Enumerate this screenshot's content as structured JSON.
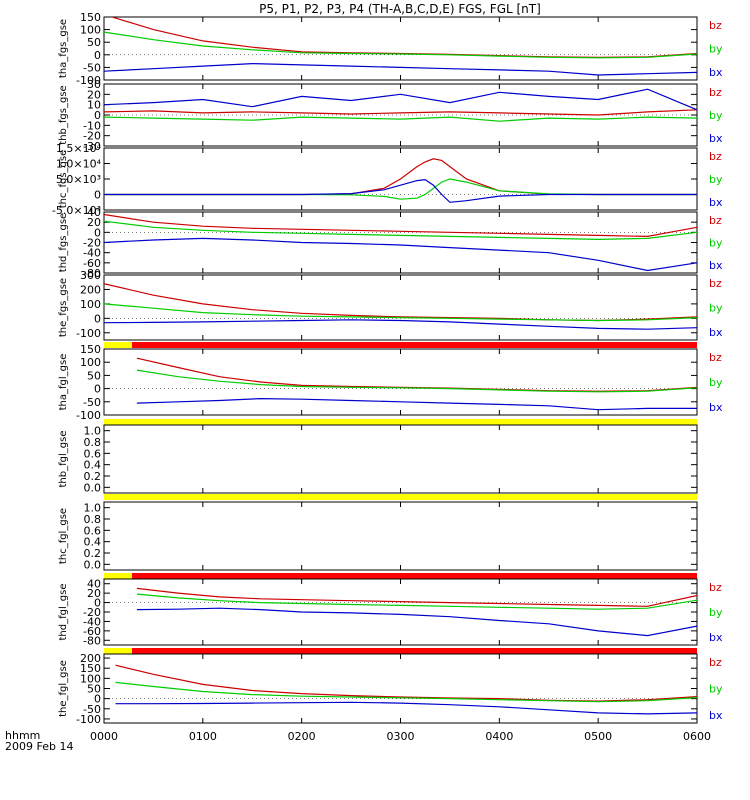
{
  "title": "P5, P1, P2, P3, P4 (TH-A,B,C,D,E) FGS, FGL [nT]",
  "x_axis": {
    "corner_labels": [
      "hhmm",
      "2009 Feb 14"
    ],
    "tick_labels": [
      "0000",
      "0100",
      "0200",
      "0300",
      "0400",
      "0500",
      "0600"
    ]
  },
  "colors": {
    "bz": "#cc0000",
    "by": "#00cc00",
    "bx": "#0000cc",
    "bar_red": "#ff0000",
    "bar_yellow": "#ffff00"
  },
  "chart_data": [
    {
      "type": "line",
      "ylabel": "tha_fgs_gse",
      "ylim": [
        -100,
        150
      ],
      "yticks": [
        -100,
        -50,
        0,
        50,
        100,
        150
      ],
      "ytick_labels": [
        "-100",
        "-50",
        "0",
        "50",
        "100",
        "150"
      ],
      "legend": [
        "bz",
        "by",
        "bx"
      ],
      "x": [
        0,
        30,
        60,
        90,
        120,
        150,
        180,
        210,
        240,
        270,
        300,
        330,
        360
      ],
      "series": [
        {
          "name": "bz",
          "values": [
            160,
            100,
            55,
            30,
            12,
            8,
            5,
            2,
            -3,
            -8,
            -10,
            -8,
            5
          ]
        },
        {
          "name": "by",
          "values": [
            90,
            60,
            35,
            20,
            8,
            5,
            3,
            0,
            -5,
            -10,
            -12,
            -10,
            3
          ]
        },
        {
          "name": "bx",
          "values": [
            -65,
            -55,
            -45,
            -35,
            -40,
            -45,
            -50,
            -55,
            -60,
            -65,
            -80,
            -75,
            -70
          ]
        }
      ],
      "bar": []
    },
    {
      "type": "line",
      "ylabel": "thb_fgs_gse",
      "ylim": [
        -30,
        30
      ],
      "yticks": [
        -30,
        -20,
        -10,
        0,
        10,
        20,
        30
      ],
      "ytick_labels": [
        "-30",
        "-20",
        "-10",
        "0",
        "10",
        "20",
        "30"
      ],
      "legend": [
        "bz",
        "by",
        "bx"
      ],
      "x": [
        0,
        30,
        60,
        90,
        120,
        150,
        180,
        210,
        240,
        270,
        300,
        330,
        360
      ],
      "series": [
        {
          "name": "bz",
          "values": [
            3,
            4,
            2,
            3,
            2,
            1,
            2,
            3,
            2,
            1,
            0,
            3,
            5
          ]
        },
        {
          "name": "by",
          "values": [
            -2,
            -3,
            -4,
            -5,
            -2,
            -3,
            -4,
            -2,
            -6,
            -3,
            -4,
            -2,
            -3
          ]
        },
        {
          "name": "bx",
          "values": [
            10,
            12,
            15,
            8,
            18,
            14,
            20,
            12,
            22,
            18,
            15,
            25,
            5
          ]
        }
      ],
      "bar": []
    },
    {
      "type": "line",
      "ylabel": "thc_fgs_gse",
      "ylim": [
        -5000,
        15000
      ],
      "yticks": [
        -5000,
        0,
        5000,
        10000,
        15000
      ],
      "ytick_labels": [
        "-5.0×10³",
        "0",
        "5.0×10³",
        "1.0×10⁴",
        "1.5×10⁴"
      ],
      "legend": [
        "bz",
        "by",
        "bx"
      ],
      "x": [
        0,
        60,
        120,
        150,
        170,
        180,
        190,
        195,
        200,
        205,
        210,
        220,
        240,
        270,
        300,
        360
      ],
      "series": [
        {
          "name": "bz",
          "values": [
            0,
            0,
            0,
            200,
            2000,
            5000,
            9000,
            10500,
            11500,
            11000,
            9000,
            5000,
            1200,
            100,
            0,
            0
          ]
        },
        {
          "name": "by",
          "values": [
            0,
            0,
            0,
            -100,
            -600,
            -1500,
            -1200,
            0,
            2000,
            4000,
            5000,
            4000,
            1200,
            200,
            0,
            0
          ]
        },
        {
          "name": "bx",
          "values": [
            0,
            0,
            0,
            300,
            1500,
            3000,
            4500,
            4800,
            3000,
            0,
            -2500,
            -2000,
            -500,
            0,
            0,
            0
          ]
        }
      ],
      "bar": []
    },
    {
      "type": "line",
      "ylabel": "thd_fgs_gse",
      "ylim": [
        -80,
        40
      ],
      "yticks": [
        -80,
        -60,
        -40,
        -20,
        0,
        20,
        40
      ],
      "ytick_labels": [
        "-80",
        "-60",
        "-40",
        "-20",
        "0",
        "20",
        "40"
      ],
      "legend": [
        "bz",
        "by",
        "bx"
      ],
      "x": [
        0,
        30,
        60,
        90,
        120,
        150,
        180,
        210,
        240,
        270,
        300,
        330,
        360
      ],
      "series": [
        {
          "name": "bz",
          "values": [
            35,
            20,
            12,
            8,
            6,
            4,
            2,
            0,
            -2,
            -4,
            -6,
            -8,
            10
          ]
        },
        {
          "name": "by",
          "values": [
            22,
            10,
            4,
            0,
            -2,
            -4,
            -6,
            -8,
            -10,
            -12,
            -14,
            -12,
            0
          ]
        },
        {
          "name": "bx",
          "values": [
            -20,
            -15,
            -12,
            -15,
            -20,
            -22,
            -25,
            -30,
            -35,
            -40,
            -55,
            -75,
            -60
          ]
        }
      ],
      "bar": []
    },
    {
      "type": "line",
      "ylabel": "the_fgs_gse",
      "ylim": [
        -150,
        300
      ],
      "yticks": [
        -100,
        0,
        100,
        200,
        300
      ],
      "ytick_labels": [
        "-100",
        "0",
        "100",
        "200",
        "300"
      ],
      "legend": [
        "bz",
        "by",
        "bx"
      ],
      "x": [
        0,
        30,
        60,
        90,
        120,
        150,
        180,
        210,
        240,
        270,
        300,
        330,
        360
      ],
      "series": [
        {
          "name": "bz",
          "values": [
            240,
            160,
            100,
            60,
            35,
            20,
            10,
            5,
            0,
            -10,
            -15,
            -5,
            10
          ]
        },
        {
          "name": "by",
          "values": [
            100,
            70,
            40,
            25,
            15,
            10,
            5,
            0,
            -5,
            -10,
            -15,
            -10,
            5
          ]
        },
        {
          "name": "bx",
          "values": [
            -30,
            -28,
            -25,
            -20,
            -15,
            -10,
            -15,
            -25,
            -40,
            -55,
            -70,
            -75,
            -65
          ]
        }
      ],
      "bar": [
        {
          "from": 0,
          "to": 17,
          "color": "yellow"
        },
        {
          "from": 17,
          "to": 360,
          "color": "red"
        }
      ]
    },
    {
      "type": "line",
      "ylabel": "tha_fgl_gse",
      "ylim": [
        -100,
        150
      ],
      "yticks": [
        -100,
        -50,
        0,
        50,
        100,
        150
      ],
      "ytick_labels": [
        "-100",
        "-50",
        "0",
        "50",
        "100",
        "150"
      ],
      "legend": [
        "bz",
        "by",
        "bx"
      ],
      "x": [
        20,
        45,
        70,
        95,
        120,
        150,
        180,
        210,
        240,
        270,
        300,
        330,
        360
      ],
      "series": [
        {
          "name": "bz",
          "values": [
            115,
            80,
            45,
            25,
            12,
            8,
            5,
            2,
            -3,
            -8,
            -10,
            -8,
            5
          ]
        },
        {
          "name": "by",
          "values": [
            70,
            45,
            28,
            15,
            8,
            5,
            3,
            0,
            -5,
            -10,
            -12,
            -10,
            3
          ]
        },
        {
          "name": "bx",
          "values": [
            -55,
            -50,
            -45,
            -38,
            -40,
            -45,
            -50,
            -55,
            -60,
            -65,
            -80,
            -75,
            -75
          ]
        }
      ],
      "bar": [
        {
          "from": 0,
          "to": 360,
          "color": "yellow"
        }
      ]
    },
    {
      "type": "line",
      "ylabel": "thb_fgl_gse",
      "ylim": [
        -0.1,
        1.1
      ],
      "yticks": [
        0.0,
        0.2,
        0.4,
        0.6,
        0.8,
        1.0
      ],
      "ytick_labels": [
        "0.0",
        "0.2",
        "0.4",
        "0.6",
        "0.8",
        "1.0"
      ],
      "legend": [],
      "x": [],
      "series": [],
      "bar": [
        {
          "from": 0,
          "to": 360,
          "color": "yellow"
        }
      ]
    },
    {
      "type": "line",
      "ylabel": "thc_fgl_gse",
      "ylim": [
        -0.1,
        1.1
      ],
      "yticks": [
        0.0,
        0.2,
        0.4,
        0.6,
        0.8,
        1.0
      ],
      "ytick_labels": [
        "0.0",
        "0.2",
        "0.4",
        "0.6",
        "0.8",
        "1.0"
      ],
      "legend": [],
      "x": [],
      "series": [],
      "bar": [
        {
          "from": 0,
          "to": 17,
          "color": "yellow"
        },
        {
          "from": 17,
          "to": 360,
          "color": "red"
        }
      ]
    },
    {
      "type": "line",
      "ylabel": "thd_fgl_gse",
      "ylim": [
        -90,
        50
      ],
      "yticks": [
        -80,
        -60,
        -40,
        -20,
        0,
        20,
        40
      ],
      "ytick_labels": [
        "-80",
        "-60",
        "-40",
        "-20",
        "0",
        "20",
        "40"
      ],
      "legend": [
        "bz",
        "by",
        "bx"
      ],
      "x": [
        20,
        45,
        70,
        95,
        120,
        150,
        180,
        210,
        240,
        270,
        300,
        330,
        360
      ],
      "series": [
        {
          "name": "bz",
          "values": [
            30,
            20,
            12,
            8,
            6,
            4,
            2,
            0,
            -2,
            -4,
            -6,
            -8,
            15
          ]
        },
        {
          "name": "by",
          "values": [
            18,
            10,
            4,
            0,
            -2,
            -4,
            -6,
            -8,
            -10,
            -12,
            -14,
            -12,
            5
          ]
        },
        {
          "name": "bx",
          "values": [
            -15,
            -14,
            -12,
            -15,
            -20,
            -22,
            -25,
            -30,
            -38,
            -45,
            -60,
            -70,
            -50
          ]
        }
      ],
      "bar": [
        {
          "from": 0,
          "to": 17,
          "color": "yellow"
        },
        {
          "from": 17,
          "to": 360,
          "color": "red"
        }
      ]
    },
    {
      "type": "line",
      "ylabel": "the_fgl_gse",
      "ylim": [
        -120,
        220
      ],
      "yticks": [
        -100,
        -50,
        0,
        50,
        100,
        150,
        200
      ],
      "ytick_labels": [
        "-100",
        "-50",
        "0",
        "50",
        "100",
        "150",
        "200"
      ],
      "legend": [
        "bz",
        "by",
        "bx"
      ],
      "x": [
        7,
        30,
        60,
        90,
        120,
        150,
        180,
        210,
        240,
        270,
        300,
        330,
        360
      ],
      "series": [
        {
          "name": "bz",
          "values": [
            165,
            120,
            70,
            40,
            25,
            15,
            8,
            3,
            0,
            -8,
            -12,
            -5,
            10
          ]
        },
        {
          "name": "by",
          "values": [
            80,
            60,
            35,
            20,
            12,
            8,
            4,
            0,
            -5,
            -10,
            -15,
            -10,
            5
          ]
        },
        {
          "name": "bx",
          "values": [
            -25,
            -25,
            -24,
            -22,
            -20,
            -18,
            -22,
            -30,
            -40,
            -55,
            -70,
            -75,
            -70
          ]
        }
      ],
      "bar": []
    }
  ]
}
